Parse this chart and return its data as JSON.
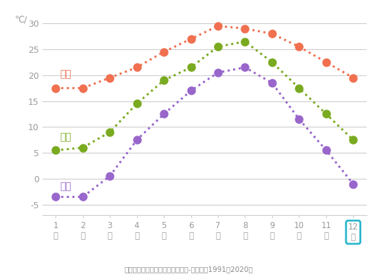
{
  "months": [
    1,
    2,
    3,
    4,
    5,
    6,
    7,
    8,
    9,
    10,
    11,
    12
  ],
  "naha": [
    17.5,
    17.5,
    19.5,
    21.5,
    24.5,
    27.0,
    29.5,
    29.0,
    28.0,
    25.5,
    22.5,
    19.5
  ],
  "tokyo": [
    5.5,
    6.0,
    9.0,
    14.5,
    19.0,
    21.5,
    25.5,
    26.5,
    22.5,
    17.5,
    12.5,
    7.5
  ],
  "sapporo": [
    -3.5,
    -3.5,
    0.5,
    7.5,
    12.5,
    17.0,
    20.5,
    21.5,
    18.5,
    11.5,
    5.5,
    -1.0
  ],
  "naha_color": "#f07050",
  "tokyo_color": "#7aaa20",
  "sapporo_color": "#9966cc",
  "ylim": [
    -7,
    32
  ],
  "yticks": [
    -5,
    0,
    5,
    10,
    15,
    20,
    25,
    30
  ],
  "ylabel": "℃/",
  "source_text": "出典：気象庁　過去の地域データ-平均値（1991～2020）",
  "label_naha": "那覇",
  "label_tokyo": "東京",
  "label_sapporo": "札幌",
  "highlight_color": "#29b6cc",
  "background_color": "#ffffff",
  "grid_color": "#cccccc",
  "tick_color": "#999999"
}
